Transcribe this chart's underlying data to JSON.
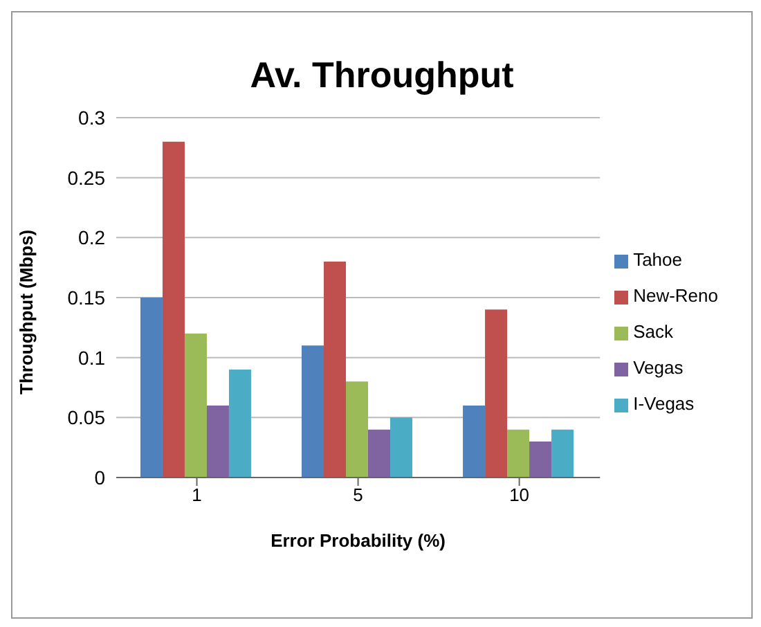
{
  "chart_data": {
    "type": "bar",
    "title": "Av. Throughput",
    "xlabel": "Error Probability (%)",
    "ylabel": "Throughput (Mbps)",
    "categories": [
      "1",
      "5",
      "10"
    ],
    "series": [
      {
        "name": "Tahoe",
        "color": "#4f81bd",
        "values": [
          0.15,
          0.11,
          0.06
        ]
      },
      {
        "name": "New-Reno",
        "color": "#c0504d",
        "values": [
          0.28,
          0.18,
          0.14
        ]
      },
      {
        "name": "Sack",
        "color": "#9bbb59",
        "values": [
          0.12,
          0.08,
          0.04
        ]
      },
      {
        "name": "Vegas",
        "color": "#8064a2",
        "values": [
          0.06,
          0.04,
          0.03
        ]
      },
      {
        "name": "I-Vegas",
        "color": "#4bacc6",
        "values": [
          0.09,
          0.05,
          0.04
        ]
      }
    ],
    "ylim": [
      0,
      0.3
    ],
    "yticks": [
      0,
      0.05,
      0.1,
      0.15,
      0.2,
      0.25,
      0.3
    ],
    "grid": "y",
    "legend": "right"
  }
}
